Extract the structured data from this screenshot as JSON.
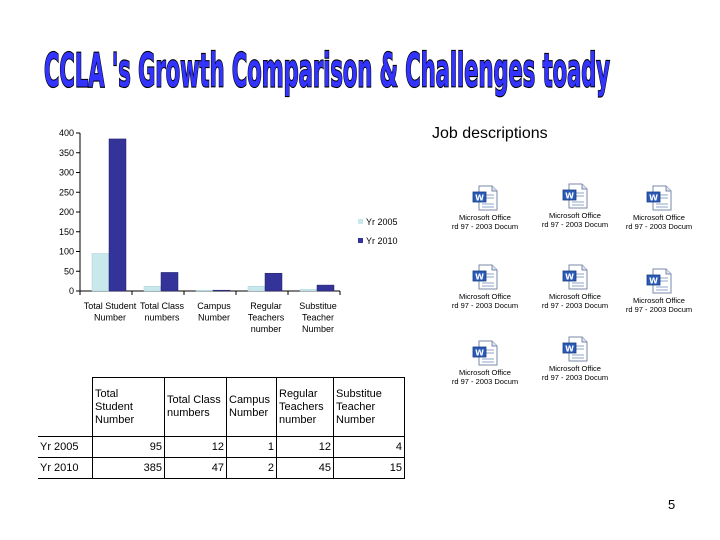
{
  "slide": {
    "title": "CCLA 's Growth Comparison & Challenges toady",
    "page_number": "5"
  },
  "chart_data": {
    "type": "bar",
    "categories": [
      "Total Student Number",
      "Total Class numbers",
      "Campus Number",
      "Regular Teachers number",
      "Substitue Teacher Number"
    ],
    "category_lines": [
      [
        "Total Student",
        "Number"
      ],
      [
        "Total Class",
        "numbers"
      ],
      [
        "Campus",
        "Number"
      ],
      [
        "Regular",
        "Teachers",
        "number"
      ],
      [
        "Substitue",
        "Teacher",
        "Number"
      ]
    ],
    "series": [
      {
        "name": "Yr 2005",
        "values": [
          95,
          12,
          1,
          12,
          4
        ],
        "color": "#c8e8ec"
      },
      {
        "name": "Yr 2010",
        "values": [
          385,
          47,
          2,
          45,
          15
        ],
        "color": "#333399"
      }
    ],
    "ylim": [
      0,
      400
    ],
    "yticks": [
      "0",
      "50",
      "100",
      "150",
      "200",
      "250",
      "300",
      "350",
      "400"
    ],
    "legend_position": "right",
    "grid": false
  },
  "table": {
    "headers": [
      "Total Student Number",
      "Total Class numbers",
      "Campus Number",
      "Regular Teachers number",
      "Substitue Teacher Number"
    ],
    "header_lines": [
      [
        "Total",
        "Student",
        "Number"
      ],
      [
        "Total Class",
        "numbers"
      ],
      [
        "Campus",
        "Number"
      ],
      [
        "Regular",
        "Teachers",
        "number"
      ],
      [
        "Substitue",
        "Teacher",
        "Number"
      ]
    ],
    "rows": [
      {
        "label": "Yr 2005",
        "values": [
          "95",
          "12",
          "1",
          "12",
          "4"
        ]
      },
      {
        "label": "Yr 2010",
        "values": [
          "385",
          "47",
          "2",
          "45",
          "15"
        ]
      }
    ]
  },
  "job_descriptions": {
    "title": "Job descriptions",
    "icon": "word-document-icon",
    "documents": [
      {
        "line1": "Microsoft Office",
        "line2": "rd 97 - 2003 Docum"
      },
      {
        "line1": "Microsoft Office",
        "line2": "rd 97 - 2003 Docum"
      },
      {
        "line1": "Microsoft Office",
        "line2": "rd 97 - 2003 Docum"
      },
      {
        "line1": "Microsoft Office",
        "line2": "rd 97 - 2003 Docum"
      },
      {
        "line1": "Microsoft Office",
        "line2": "rd 97 - 2003 Docum"
      },
      {
        "line1": "Microsoft Office",
        "line2": "rd 97 - 2003 Docum"
      },
      {
        "line1": "Microsoft Office",
        "line2": "rd 97 - 2003 Docum"
      },
      {
        "line1": "Microsoft Office",
        "line2": "rd 97 - 2003 Docum"
      }
    ]
  }
}
